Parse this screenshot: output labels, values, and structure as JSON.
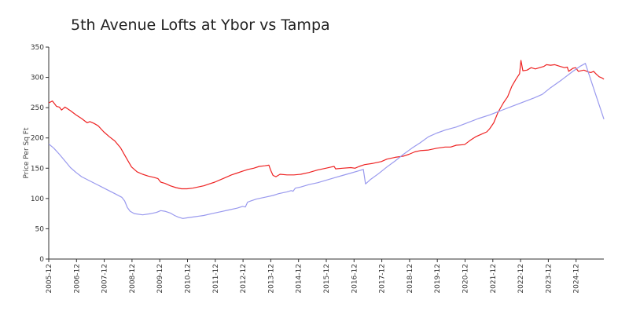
{
  "chart_data": {
    "type": "line",
    "title": "5th Avenue Lofts at Ybor vs Tampa",
    "xlabel": "",
    "ylabel": "Price Per Sq Ft",
    "ylim": [
      0,
      350
    ],
    "yticks": [
      0,
      50,
      100,
      150,
      200,
      250,
      300,
      350
    ],
    "xlim": [
      2005.917,
      2025.917
    ],
    "x_tick_labels": [
      "2005-12",
      "2006-12",
      "2007-12",
      "2008-12",
      "2009-12",
      "2010-12",
      "2011-12",
      "2012-12",
      "2013-12",
      "2014-12",
      "2015-12",
      "2016-12",
      "2017-12",
      "2018-12",
      "2019-12",
      "2020-12",
      "2021-12",
      "2022-12",
      "2023-12",
      "2024-12"
    ],
    "series": [
      {
        "name": "5th Avenue Lofts at Ybor",
        "color": "#ee2222",
        "points": [
          [
            2005.92,
            258
          ],
          [
            2006.05,
            261
          ],
          [
            2006.2,
            252
          ],
          [
            2006.3,
            251
          ],
          [
            2006.38,
            246
          ],
          [
            2006.5,
            251
          ],
          [
            2006.7,
            245
          ],
          [
            2006.9,
            238
          ],
          [
            2007.1,
            232
          ],
          [
            2007.3,
            225
          ],
          [
            2007.4,
            227
          ],
          [
            2007.55,
            224
          ],
          [
            2007.7,
            220
          ],
          [
            2007.9,
            210
          ],
          [
            2008.1,
            202
          ],
          [
            2008.3,
            195
          ],
          [
            2008.5,
            184
          ],
          [
            2008.7,
            168
          ],
          [
            2008.9,
            152
          ],
          [
            2009.1,
            144
          ],
          [
            2009.3,
            140
          ],
          [
            2009.5,
            137
          ],
          [
            2009.7,
            135
          ],
          [
            2009.85,
            133
          ],
          [
            2009.95,
            127
          ],
          [
            2010.1,
            125
          ],
          [
            2010.3,
            121
          ],
          [
            2010.5,
            118
          ],
          [
            2010.7,
            116
          ],
          [
            2010.9,
            116
          ],
          [
            2011.1,
            117
          ],
          [
            2011.3,
            119
          ],
          [
            2011.5,
            121
          ],
          [
            2011.7,
            124
          ],
          [
            2011.9,
            127
          ],
          [
            2012.1,
            131
          ],
          [
            2012.3,
            135
          ],
          [
            2012.5,
            139
          ],
          [
            2012.7,
            142
          ],
          [
            2012.9,
            145
          ],
          [
            2013.1,
            148
          ],
          [
            2013.3,
            150
          ],
          [
            2013.5,
            153
          ],
          [
            2013.7,
            154
          ],
          [
            2013.85,
            155
          ],
          [
            2013.92,
            146
          ],
          [
            2014.0,
            138
          ],
          [
            2014.1,
            136
          ],
          [
            2014.25,
            140
          ],
          [
            2014.5,
            139
          ],
          [
            2014.75,
            139
          ],
          [
            2015.0,
            140
          ],
          [
            2015.3,
            143
          ],
          [
            2015.6,
            147
          ],
          [
            2015.9,
            150
          ],
          [
            2016.1,
            152
          ],
          [
            2016.2,
            153
          ],
          [
            2016.25,
            149
          ],
          [
            2016.5,
            150
          ],
          [
            2016.8,
            151
          ],
          [
            2016.95,
            150
          ],
          [
            2017.1,
            153
          ],
          [
            2017.3,
            156
          ],
          [
            2017.6,
            158
          ],
          [
            2017.9,
            161
          ],
          [
            2018.1,
            165
          ],
          [
            2018.4,
            168
          ],
          [
            2018.7,
            170
          ],
          [
            2018.9,
            173
          ],
          [
            2019.1,
            177
          ],
          [
            2019.3,
            179
          ],
          [
            2019.6,
            180
          ],
          [
            2019.9,
            183
          ],
          [
            2020.2,
            185
          ],
          [
            2020.4,
            185
          ],
          [
            2020.6,
            188
          ],
          [
            2020.9,
            189
          ],
          [
            2021.1,
            196
          ],
          [
            2021.3,
            202
          ],
          [
            2021.5,
            206
          ],
          [
            2021.7,
            210
          ],
          [
            2021.8,
            215
          ],
          [
            2021.95,
            225
          ],
          [
            2022.1,
            242
          ],
          [
            2022.3,
            258
          ],
          [
            2022.45,
            268
          ],
          [
            2022.6,
            285
          ],
          [
            2022.75,
            297
          ],
          [
            2022.88,
            306
          ],
          [
            2022.93,
            328
          ],
          [
            2023.0,
            311
          ],
          [
            2023.15,
            312
          ],
          [
            2023.3,
            316
          ],
          [
            2023.45,
            314
          ],
          [
            2023.6,
            316
          ],
          [
            2023.75,
            318
          ],
          [
            2023.85,
            321
          ],
          [
            2024.0,
            320
          ],
          [
            2024.15,
            321
          ],
          [
            2024.35,
            318
          ],
          [
            2024.5,
            316
          ],
          [
            2024.6,
            317
          ],
          [
            2024.65,
            310
          ],
          [
            2024.8,
            315
          ],
          [
            2024.9,
            316
          ],
          [
            2025.0,
            310
          ],
          [
            2025.1,
            311
          ],
          [
            2025.2,
            312
          ],
          [
            2025.35,
            309
          ],
          [
            2025.45,
            308
          ],
          [
            2025.55,
            310
          ],
          [
            2025.65,
            305
          ],
          [
            2025.75,
            301
          ],
          [
            2025.85,
            299
          ],
          [
            2025.92,
            297
          ]
        ]
      },
      {
        "name": "Tampa",
        "color": "#9999ee",
        "points": [
          [
            2005.92,
            190
          ],
          [
            2006.1,
            183
          ],
          [
            2006.3,
            173
          ],
          [
            2006.5,
            162
          ],
          [
            2006.7,
            151
          ],
          [
            2006.9,
            143
          ],
          [
            2007.1,
            136
          ],
          [
            2007.4,
            129
          ],
          [
            2007.7,
            122
          ],
          [
            2008.0,
            115
          ],
          [
            2008.3,
            108
          ],
          [
            2008.55,
            102
          ],
          [
            2008.65,
            96
          ],
          [
            2008.75,
            85
          ],
          [
            2008.85,
            79
          ],
          [
            2009.0,
            75
          ],
          [
            2009.3,
            73
          ],
          [
            2009.6,
            75
          ],
          [
            2009.8,
            77
          ],
          [
            2009.95,
            80
          ],
          [
            2010.1,
            79
          ],
          [
            2010.3,
            76
          ],
          [
            2010.45,
            72
          ],
          [
            2010.6,
            69
          ],
          [
            2010.75,
            67
          ],
          [
            2010.9,
            68
          ],
          [
            2011.2,
            70
          ],
          [
            2011.5,
            72
          ],
          [
            2011.8,
            75
          ],
          [
            2012.1,
            78
          ],
          [
            2012.4,
            81
          ],
          [
            2012.7,
            84
          ],
          [
            2012.9,
            87
          ],
          [
            2013.0,
            86
          ],
          [
            2013.08,
            94
          ],
          [
            2013.2,
            96
          ],
          [
            2013.4,
            99
          ],
          [
            2013.7,
            102
          ],
          [
            2014.0,
            105
          ],
          [
            2014.2,
            108
          ],
          [
            2014.5,
            111
          ],
          [
            2014.65,
            113
          ],
          [
            2014.72,
            112
          ],
          [
            2014.8,
            117
          ],
          [
            2015.0,
            119
          ],
          [
            2015.3,
            123
          ],
          [
            2015.6,
            126
          ],
          [
            2015.9,
            130
          ],
          [
            2016.2,
            134
          ],
          [
            2016.5,
            138
          ],
          [
            2016.8,
            142
          ],
          [
            2017.1,
            146
          ],
          [
            2017.25,
            148
          ],
          [
            2017.33,
            124
          ],
          [
            2017.5,
            131
          ],
          [
            2017.8,
            141
          ],
          [
            2018.1,
            152
          ],
          [
            2018.4,
            162
          ],
          [
            2018.7,
            173
          ],
          [
            2019.0,
            183
          ],
          [
            2019.3,
            192
          ],
          [
            2019.6,
            202
          ],
          [
            2019.9,
            208
          ],
          [
            2020.2,
            213
          ],
          [
            2020.6,
            218
          ],
          [
            2021.0,
            225
          ],
          [
            2021.4,
            232
          ],
          [
            2021.8,
            238
          ],
          [
            2022.2,
            245
          ],
          [
            2022.6,
            252
          ],
          [
            2023.0,
            259
          ],
          [
            2023.4,
            266
          ],
          [
            2023.7,
            272
          ],
          [
            2024.0,
            283
          ],
          [
            2024.4,
            296
          ],
          [
            2024.8,
            310
          ],
          [
            2025.05,
            318
          ],
          [
            2025.25,
            323
          ],
          [
            2025.6,
            275
          ],
          [
            2025.92,
            231
          ]
        ]
      }
    ]
  }
}
